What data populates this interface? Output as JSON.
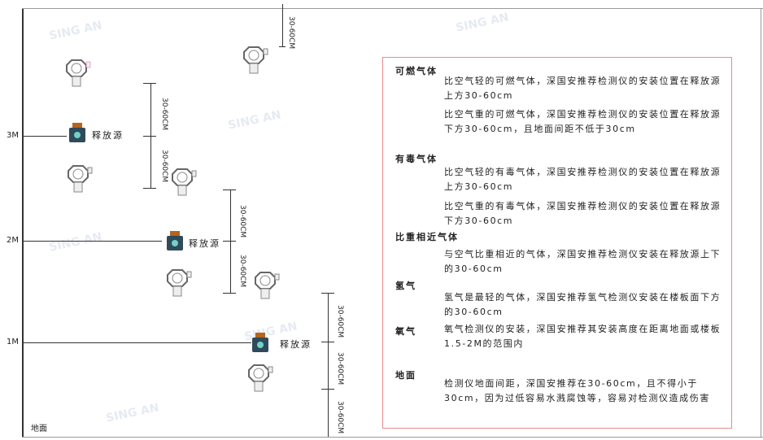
{
  "diagram": {
    "levels": [
      "3M",
      "2M",
      "1M"
    ],
    "floor_label": "地面",
    "source_label": "释放源",
    "dimension_label": "30-60CM"
  },
  "legend": {
    "sections": [
      {
        "heading": "可燃气体",
        "paragraphs": [
          "比空气轻的可燃气体，深国安推荐检测仪的安装位置在释放源上方30-60cm",
          "比空气重的可燃气体，深国安推荐检测仪的安装位置在释放源下方30-60cm，且地面间距不低于30cm"
        ]
      },
      {
        "heading": "有毒气体",
        "paragraphs": [
          "比空气轻的有毒气体，深国安推荐检测仪的安装位置在释放源上方30-60cm",
          "比空气重的有毒气体，深国安推荐检测仪的安装位置在释放源下方30-60cm"
        ]
      },
      {
        "heading": "比重相近气体",
        "paragraphs": [
          "与空气比重相近的气体，深国安推荐检测仪安装在释放源上下的30-60cm"
        ]
      },
      {
        "heading": "氢气",
        "paragraphs": [
          "氢气是最轻的气体，深国安推荐氢气检测仪安装在楼板面下方的30-60cm"
        ]
      },
      {
        "heading": "氧气",
        "paragraphs": [
          "氧气检测仪的安装，深国安推荐其安装高度在距离地面或楼板1.5-2M的范围内"
        ]
      },
      {
        "heading": "地面",
        "paragraphs": [
          "检测仪地面间距，深国安推荐在30-60cm，且不得小于30cm，因为过低容易水溅腐蚀等，容易对检测仪造成伤害"
        ]
      }
    ]
  },
  "colors": {
    "box_border": "#e88a8a",
    "source_body": "#2f4a5a",
    "source_cap": "#b5651d"
  }
}
